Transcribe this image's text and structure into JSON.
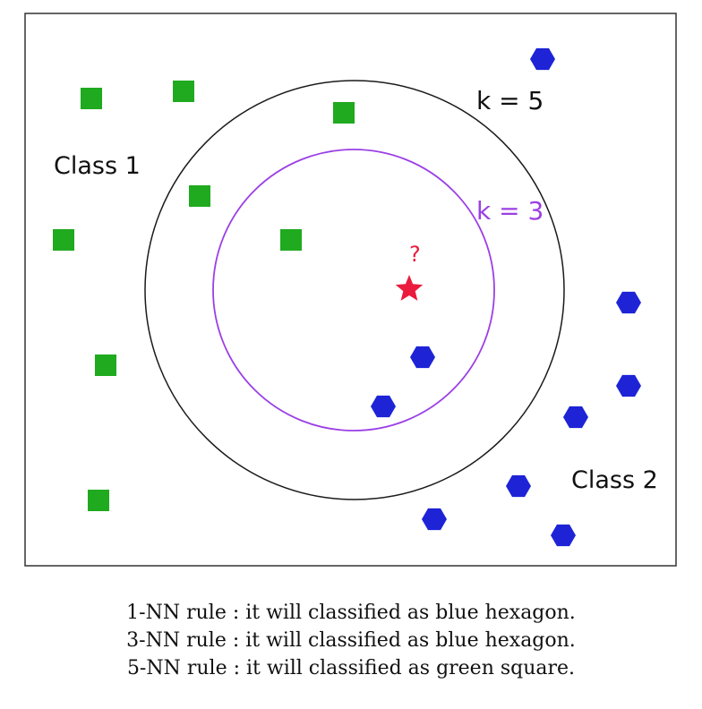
{
  "diagram": {
    "class1_label": "Class 1",
    "class2_label": "Class 2",
    "k5_label": "k = 5",
    "k3_label": "k = 3",
    "query_label": "?",
    "colors": {
      "class1": "#1faa1f",
      "class2": "#1e24d6",
      "query": "#ea1b3c",
      "k3_circle": "#9b3fe6",
      "k5_circle": "#1a1a1a",
      "frame": "#333333"
    }
  },
  "captions": [
    "1-NN rule : it will classified as blue hexagon.",
    "3-NN rule : it will classified as blue hexagon.",
    "5-NN rule : it will classified as green square."
  ]
}
